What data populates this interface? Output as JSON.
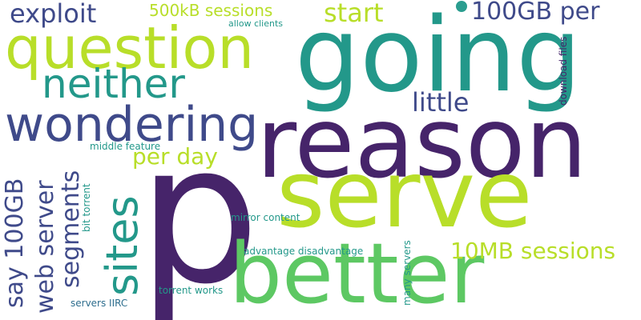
{
  "colors": {
    "dark_purple": "#46246a",
    "indigo": "#3f4a8a",
    "teal": "#23988a",
    "green": "#5dc863",
    "lime": "#b8de29",
    "steel": "#2e6e8e"
  },
  "words": {
    "p": "p",
    "going": "going",
    "reason": "reason",
    "serve": "serve",
    "better": "better",
    "question": "question",
    "wondering": "wondering",
    "neither": "neither",
    "sites": "sites",
    "exploit": "exploit",
    "start": "start",
    "sessions_500kb": "500kB sessions",
    "per_100gb": "100GB per",
    "little": "little",
    "per_day": "per day",
    "say_100gb": "say 100GB",
    "web_server": "web server",
    "segments": "segments",
    "sessions_10mb": "10MB sessions",
    "allow_clients": "allow clients",
    "download_files": "download files",
    "middle_feature": "middle feature",
    "bit_torrent": "bit torrent",
    "mirror_content": "mirror content",
    "advantage_disadvantage": "advantage disadvantage",
    "many_servers": "many servers",
    "torrent_works": "torrent works",
    "servers_iirc": "servers IIRC"
  }
}
